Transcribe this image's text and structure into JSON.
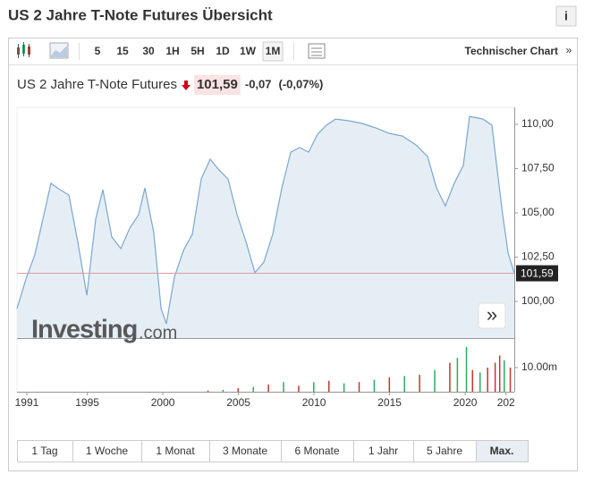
{
  "header": {
    "title": "US 2 Jahre T-Note Futures Übersicht",
    "info": "i"
  },
  "toolbar": {
    "periods": [
      "5",
      "15",
      "30",
      "1H",
      "5H",
      "1D",
      "1W",
      "1M"
    ],
    "active": "1M",
    "link": "Technischer Chart",
    "link_arrow": "»"
  },
  "quote": {
    "name": "US 2 Jahre T-Note Futures",
    "price": "101,59",
    "change": "-0,07",
    "change_pct": "(-0,07%)"
  },
  "watermark": {
    "brand": "Investing",
    "suffix": ".com"
  },
  "nav_button": "»",
  "chart_data": [
    {
      "type": "line",
      "color": "#7aa7cf",
      "fill": "#e6eef5",
      "x": [
        1990.35,
        1990.94,
        1991.53,
        1992.13,
        1992.6,
        1993.19,
        1993.78,
        1994.37,
        1994.97,
        1995.56,
        1996.03,
        1996.62,
        1997.22,
        1997.81,
        1998.4,
        1998.81,
        1999.4,
        1999.88,
        2000.23,
        2000.76,
        2001.36,
        2001.95,
        2002.54,
        2003.13,
        2003.72,
        2004.31,
        2004.91,
        2005.5,
        2006.09,
        2006.68,
        2007.27,
        2007.87,
        2008.46,
        2009.05,
        2009.64,
        2010.23,
        2010.82,
        2011.42,
        2012.3,
        2013.19,
        2014.08,
        2014.96,
        2015.85,
        2016.74,
        2017.51,
        2018.1,
        2018.69,
        2019.28,
        2019.88,
        2020.29,
        2021.18,
        2021.77,
        2022.12,
        2022.48,
        2022.84,
        2023.25
      ],
      "values": [
        99.6,
        101.26,
        102.63,
        104.9,
        106.67,
        106.31,
        106.01,
        103.38,
        100.35,
        104.65,
        106.31,
        103.64,
        102.98,
        104.14,
        104.9,
        106.41,
        103.89,
        99.6,
        98.74,
        101.36,
        102.88,
        103.79,
        106.92,
        108.03,
        107.42,
        106.92,
        104.9,
        103.38,
        101.62,
        102.22,
        103.79,
        106.41,
        108.43,
        108.69,
        108.43,
        109.44,
        109.95,
        110.3,
        110.2,
        110.05,
        109.8,
        109.49,
        109.34,
        108.84,
        108.18,
        106.41,
        105.4,
        106.67,
        107.68,
        110.45,
        110.3,
        109.95,
        107.42,
        104.9,
        102.73,
        101.59
      ],
      "xlim": [
        1990.35,
        2023.25
      ],
      "xticks": [
        1991,
        1995,
        2000,
        2005,
        2010,
        2015,
        2020,
        {
          "value": 2022.7,
          "label": "202"
        }
      ],
      "ylim": [
        97.93,
        110.96
      ],
      "yticks": [
        {
          "value": 100,
          "label": "100,00"
        },
        {
          "value": 102.5,
          "label": "102,50"
        },
        {
          "value": 105,
          "label": "105,00"
        },
        {
          "value": 107.5,
          "label": "107,50"
        },
        {
          "value": 110,
          "label": "110,00"
        }
      ],
      "last": {
        "value": 101.59,
        "label": "101,59"
      },
      "last_color": "#d9a0a0",
      "grid": false
    },
    {
      "type": "bar",
      "x": [
        2003,
        2004,
        2005,
        2006,
        2007,
        2008,
        2009,
        2010,
        2011,
        2012,
        2013,
        2014,
        2015,
        2016,
        2017,
        2018,
        2019,
        2019.5,
        2020.1,
        2020.5,
        2021,
        2021.5,
        2022,
        2022.3,
        2022.6,
        2023
      ],
      "values": [
        0.5,
        0.8,
        1.5,
        2,
        3,
        4,
        2.5,
        4,
        4.5,
        3.5,
        4,
        5,
        6,
        6.5,
        7,
        9,
        12,
        14,
        18.5,
        9,
        8,
        10,
        12,
        15,
        13,
        10
      ],
      "colors": [
        "#c0392b",
        "#27ae60",
        "#c0392b",
        "#27ae60",
        "#c0392b",
        "#27ae60",
        "#c0392b",
        "#27ae60",
        "#c0392b",
        "#27ae60",
        "#c0392b",
        "#27ae60",
        "#c0392b",
        "#27ae60",
        "#c0392b",
        "#27ae60",
        "#c0392b",
        "#27ae60",
        "#27ae60",
        "#c0392b",
        "#27ae60",
        "#c0392b",
        "#c0392b",
        "#c0392b",
        "#27ae60",
        "#c0392b"
      ],
      "ylim": [
        0,
        19.6
      ],
      "yticks": [
        {
          "value": 10,
          "label": "10.00m"
        }
      ]
    }
  ],
  "ranges": {
    "buttons": [
      "1 Tag",
      "1 Woche",
      "1 Monat",
      "3 Monate",
      "6 Monate",
      "1 Jahr",
      "5 Jahre",
      "Max."
    ],
    "active": "Max."
  }
}
